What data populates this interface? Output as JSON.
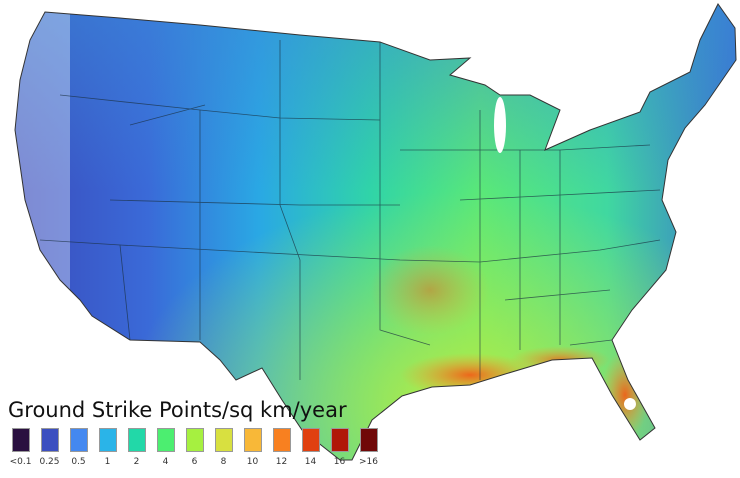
{
  "legend": {
    "title": "Ground Strike Points/sq km/year",
    "items": [
      {
        "label": "<0.1",
        "color": "#2a1040"
      },
      {
        "label": "0.25",
        "color": "#3c4fc0"
      },
      {
        "label": "0.5",
        "color": "#4488f0"
      },
      {
        "label": "1",
        "color": "#2ab4e8"
      },
      {
        "label": "2",
        "color": "#22d8a8"
      },
      {
        "label": "4",
        "color": "#4cee70"
      },
      {
        "label": "6",
        "color": "#a6f040"
      },
      {
        "label": "8",
        "color": "#d8e040"
      },
      {
        "label": "10",
        "color": "#f8b838"
      },
      {
        "label": "12",
        "color": "#f88020"
      },
      {
        "label": "14",
        "color": "#e04010"
      },
      {
        "label": "16",
        "color": "#b01808"
      },
      {
        "label": ">16",
        "color": "#700808"
      }
    ]
  }
}
